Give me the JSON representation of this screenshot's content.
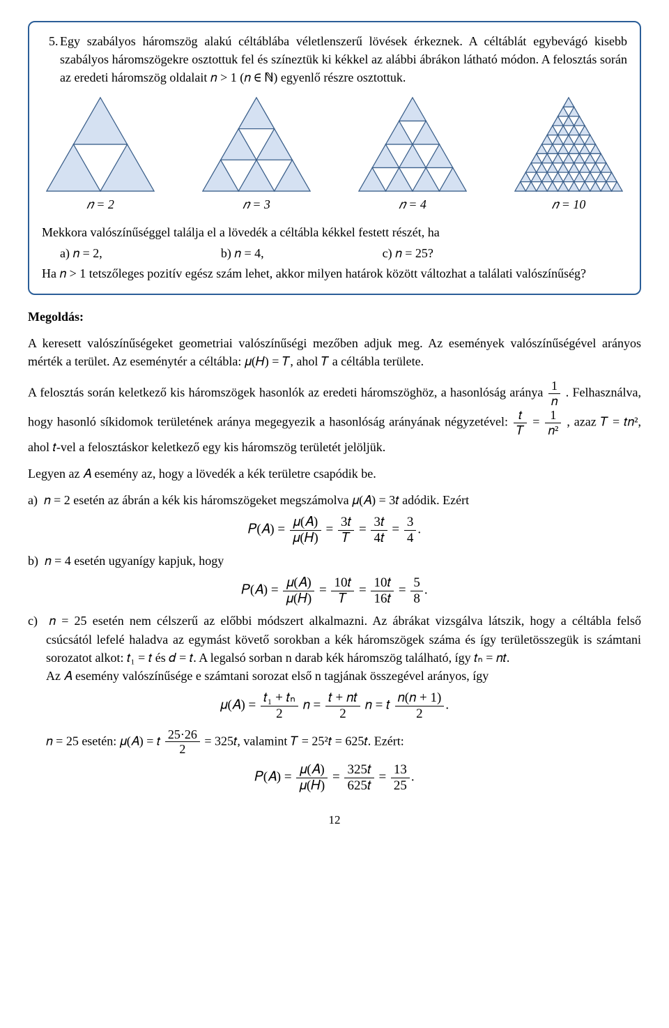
{
  "problem_number": "5.",
  "problem": {
    "p1": "Egy szabályos háromszög alakú céltáblába véletlenszerű lövések érkeznek. A céltáblát egybevágó kisebb szabályos háromszögekre osztottuk fel és színeztük ki kékkel az alábbi ábrákon látható módon. A felosztás során az eredeti háromszög oldalait 𝑛 > 1 (𝑛 ∈ ℕ) egyenlő részre osztottuk.",
    "q_lead": "Mekkora valószínűséggel találja el a lövedék a céltábla kékkel festett részét, ha",
    "opt_a": "a)   𝑛 = 2,",
    "opt_b": "b)   𝑛 = 4,",
    "opt_c": "c)   𝑛 = 25?",
    "p2": "Ha 𝑛 > 1 tetszőleges pozitív egész szám lehet, akkor milyen határok között változhat a találati valószínűség?"
  },
  "figs": {
    "labels": [
      "𝑛 = 2",
      "𝑛 = 3",
      "𝑛 = 4",
      "𝑛 = 10"
    ],
    "fill": "#d5e1f2",
    "stroke": "#3b5f8a",
    "stroke_width": 1.2,
    "bg": "#ffffff"
  },
  "solution": {
    "title": "Megoldás:",
    "s1": "A keresett valószínűségeket geometriai valószínűségi mezőben adjuk meg. Az események valószínűségével arányos mérték a terület. Az eseménytér a céltábla: 𝜇(𝐻) = 𝑇, ahol 𝑇 a céltábla területe.",
    "s2a": "A felosztás során keletkező kis háromszögek hasonlók az eredeti háromszöghöz, a hasonlóság aránya ",
    "s2b": ". Felhasználva, hogy hasonló síkidomok területének aránya megegyezik a hasonlóság arányának négyzetével: ",
    "s2c": ", azaz 𝑇 = 𝑡𝑛², ahol 𝑡-vel a felosztáskor keletkező egy kis háromszög területét jelöljük.",
    "s3": "Legyen az 𝐴 esemény az, hogy a lövedék a kék területre csapódik be.",
    "a_line": "𝑛 = 2 esetén az ábrán a kék kis háromszögeket megszámolva 𝜇(𝐴) = 3𝑡 adódik. Ezért",
    "b_line": "𝑛 = 4 esetén ugyanígy kapjuk, hogy",
    "c_p1": "𝑛 = 25 esetén nem célszerű az előbbi módszert alkalmazni. Az ábrákat vizsgálva látszik, hogy a céltábla felső csúcsától lefelé haladva az egymást követő sorokban a kék háromszögek száma és így területösszegük is számtani sorozatot alkot: 𝑡₁ = 𝑡 és 𝑑 = 𝑡. A legalsó sorban n darab kék háromszög található, így 𝑡ₙ = 𝑛𝑡.",
    "c_p2": "Az 𝐴 esemény valószínűsége e számtani sorozat első n tagjának összegével arányos, így",
    "c_p3a": "𝑛 = 25 esetén: 𝜇(𝐴) = 𝑡 ",
    "c_p3b": " = 325𝑡, valamint 𝑇 = 25²𝑡 = 625𝑡. Ezért:"
  },
  "eq": {
    "PA_a": "𝑃(𝐴) = ",
    "PA_b": "𝑃(𝐴) = ",
    "muA_over_muH": "𝜇(𝐴)",
    "muH": "𝜇(𝐻)",
    "three_t": "3𝑡",
    "T": "𝑇",
    "four_t": "4𝑡",
    "three_over_four": "¾",
    "ten_t": "10𝑡",
    "sixteen_t": "16𝑡",
    "five_eight": "5/8",
    "muA_eq": "𝜇(𝐴) = ",
    "t1_tn": "𝑡₁ + 𝑡ₙ",
    "two": "2",
    "n": "𝑛 = ",
    "t_nt": "𝑡 + 𝑛𝑡",
    "n2": "𝑛 = 𝑡",
    "nn1": "𝑛(𝑛 + 1)",
    "twofive_26": "25·26",
    "325t": "325𝑡",
    "625t": "625𝑡",
    "thirteen": "13",
    "twentyfive": "25",
    "one": "1",
    "nsq": "𝑛²",
    "t_over_T": "𝑡",
    "three": "3",
    "four": "4",
    "five": "5",
    "eight": "8"
  },
  "page_number": "12"
}
